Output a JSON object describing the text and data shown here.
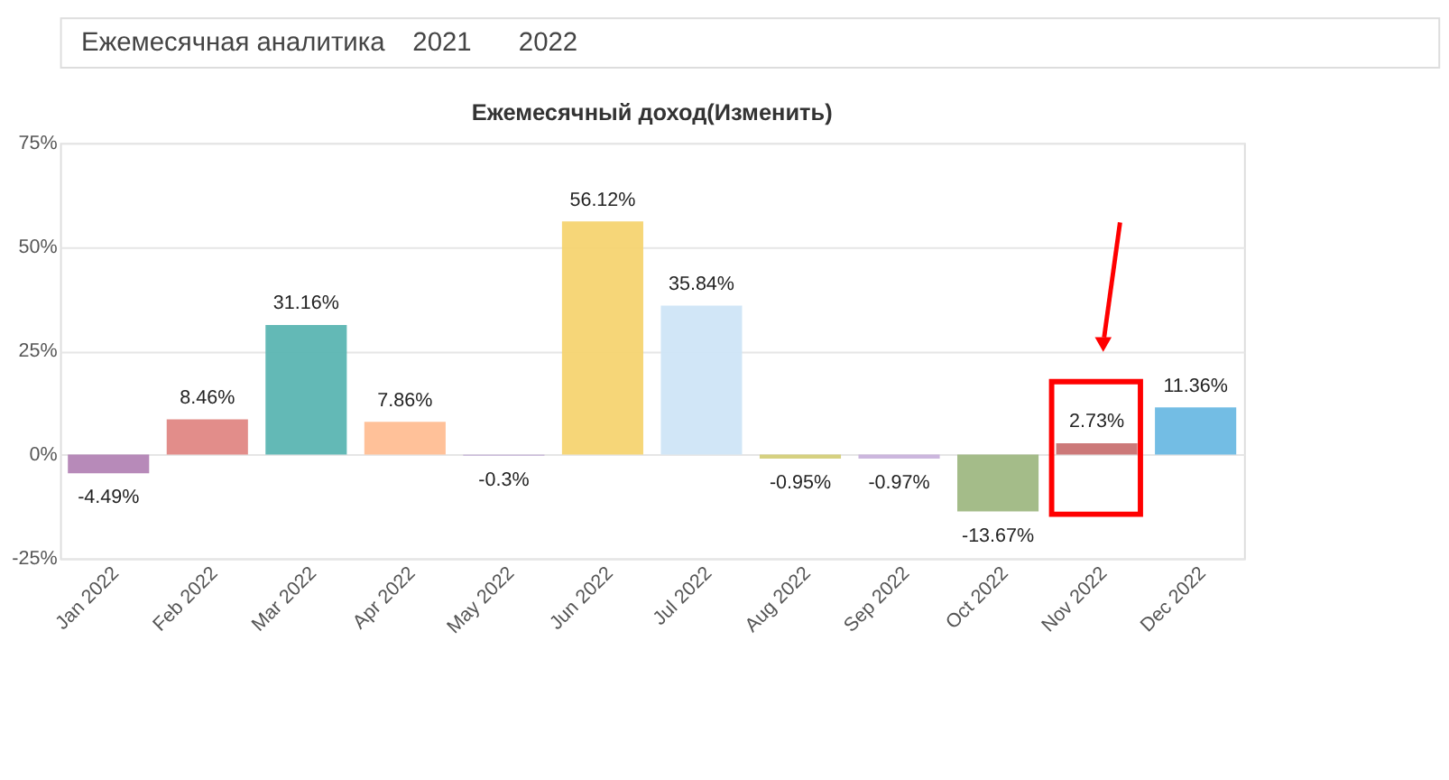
{
  "chart_data": {
    "type": "bar",
    "title": "Ежемесячный доход(Изменить)",
    "annotations": [
      "Ежемесячная аналитика",
      "2021",
      "2022"
    ],
    "categories": [
      "Jan 2022",
      "Feb 2022",
      "Mar 2022",
      "Apr 2022",
      "May 2022",
      "Jun 2022",
      "Jul 2022",
      "Aug 2022",
      "Sep 2022",
      "Oct 2022",
      "Nov 2022",
      "Dec 2022"
    ],
    "values": [
      -4.49,
      8.46,
      31.16,
      7.86,
      -0.3,
      56.12,
      35.84,
      -0.95,
      -0.97,
      -13.67,
      2.73,
      11.36
    ],
    "colors": [
      "#b384b5",
      "#e08784",
      "#5bb5b2",
      "#ffbe94",
      "#c9b8d9",
      "#f6d471",
      "#cfe5f7",
      "#d4cf7a",
      "#c9b3dc",
      "#9fb883",
      "#c97272",
      "#6cb9e3"
    ],
    "value_labels": [
      "-4.49%",
      "8.46%",
      "31.16%",
      "7.86%",
      "-0.3%",
      "56.12%",
      "35.84%",
      "-0.95%",
      "-0.97%",
      "-13.67%",
      "2.73%",
      "11.36%"
    ],
    "ylim": [
      -25,
      75
    ],
    "yticks": [
      {
        "value": -25,
        "label": "-25%"
      },
      {
        "value": 0,
        "label": "0%"
      },
      {
        "value": 25,
        "label": "25%"
      },
      {
        "value": 50,
        "label": "50%"
      },
      {
        "value": 75,
        "label": "75%"
      }
    ],
    "grid": true,
    "legend": false
  }
}
